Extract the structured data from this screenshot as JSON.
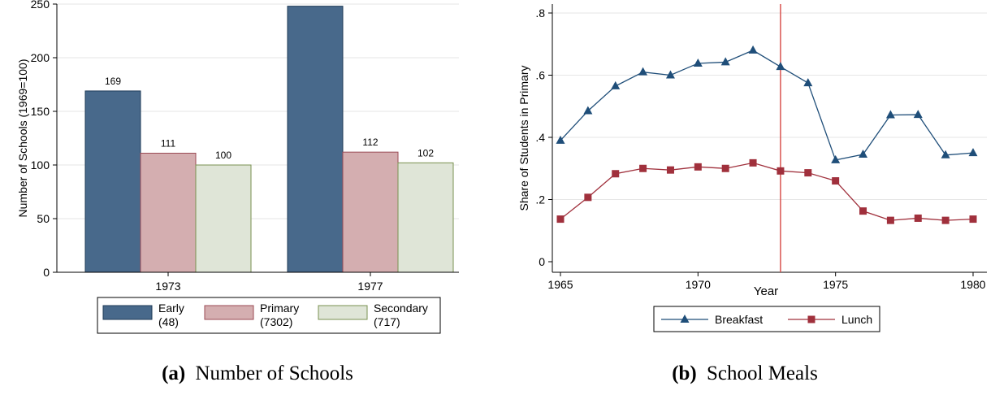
{
  "chart_data": [
    {
      "type": "bar",
      "caption": {
        "label": "(a)",
        "text": "Number of Schools"
      },
      "ylabel": "Number of Schools (1969=100)",
      "ylim": [
        0,
        250
      ],
      "yticks": [
        0,
        50,
        100,
        150,
        200,
        250
      ],
      "categories": [
        "1973",
        "1977"
      ],
      "series": [
        {
          "name": "Early",
          "count": "(48)",
          "values": [
            169,
            248
          ],
          "color": "#48698b",
          "stroke": "#1f3b57"
        },
        {
          "name": "Primary",
          "count": "(7302)",
          "values": [
            111,
            112
          ],
          "color": "#d4aeb0",
          "stroke": "#9b4b55"
        },
        {
          "name": "Secondary",
          "count": "(717)",
          "values": [
            100,
            102
          ],
          "color": "#dfe5d7",
          "stroke": "#7a9150"
        }
      ],
      "grid": true,
      "legend": "bottom"
    },
    {
      "type": "line",
      "caption": {
        "label": "(b)",
        "text": "School Meals"
      },
      "xlabel": "Year",
      "ylabel": "Share of Students in Primary",
      "xlim": [
        1965,
        1980
      ],
      "ylim": [
        0,
        0.8
      ],
      "xticks": [
        1965,
        1970,
        1975,
        1980
      ],
      "yticks": [
        {
          "value": 0,
          "label": "0"
        },
        {
          "value": 0.2,
          "label": ".2"
        },
        {
          "value": 0.4,
          "label": ".4"
        },
        {
          "value": 0.6,
          "label": ".6"
        },
        {
          "value": 0.8,
          "label": ".8"
        }
      ],
      "x": [
        1965,
        1966,
        1967,
        1968,
        1969,
        1970,
        1971,
        1972,
        1973,
        1974,
        1975,
        1976,
        1977,
        1978,
        1979,
        1980
      ],
      "series": [
        {
          "name": "Breakfast",
          "marker": "triangle",
          "color": "#1f4e79",
          "values": [
            0.39,
            0.485,
            0.565,
            0.61,
            0.6,
            0.638,
            0.642,
            0.68,
            0.627,
            0.575,
            0.327,
            0.345,
            0.472,
            0.473,
            0.343,
            0.35
          ]
        },
        {
          "name": "Lunch",
          "marker": "square",
          "color": "#a0303c",
          "values": [
            0.137,
            0.207,
            0.283,
            0.3,
            0.295,
            0.305,
            0.3,
            0.318,
            0.292,
            0.286,
            0.26,
            0.163,
            0.133,
            0.14,
            0.133,
            0.137
          ]
        }
      ],
      "vline": {
        "x": 1973,
        "color": "#d9534f"
      },
      "grid": true,
      "legend": "bottom"
    }
  ]
}
